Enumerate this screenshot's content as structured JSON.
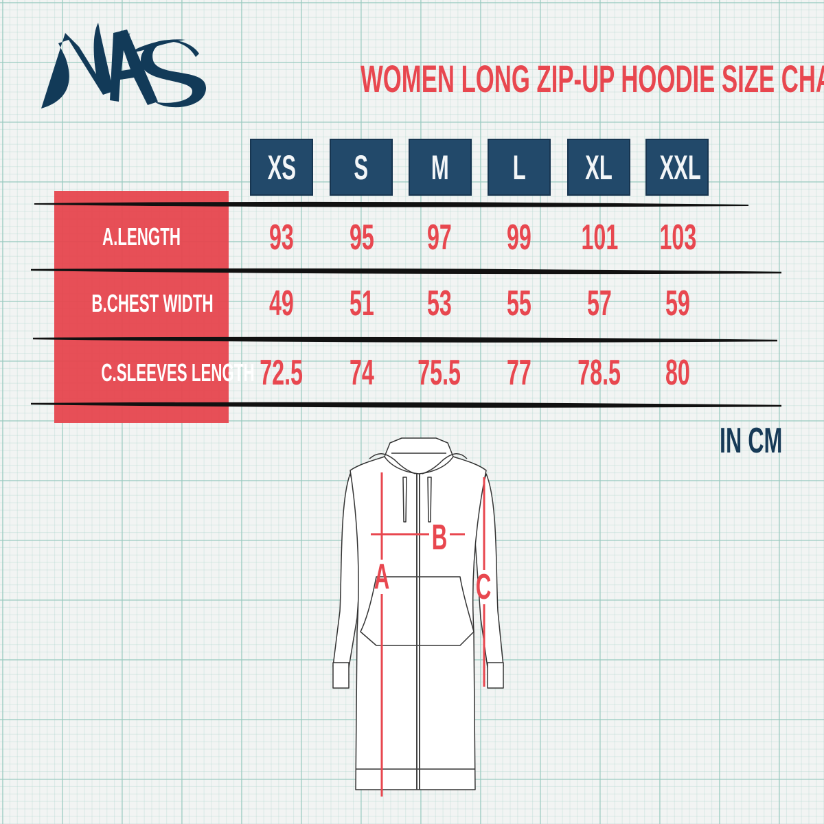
{
  "logo": {
    "text": "NAS",
    "color": "#123a58"
  },
  "title": "WOMEN LONG ZIP-UP HOODIE SIZE CHART",
  "colors": {
    "accent_red": "#e8474f",
    "navy": "#22496a",
    "grid": "#a8d4cc"
  },
  "sizes": [
    "XS",
    "S",
    "M",
    "L",
    "XL",
    "XXL"
  ],
  "rows": [
    {
      "label": "A.LENGTH",
      "values": [
        "93",
        "95",
        "97",
        "99",
        "101",
        "103"
      ]
    },
    {
      "label": "B.CHEST WIDTH",
      "values": [
        "49",
        "51",
        "53",
        "55",
        "57",
        "59"
      ]
    },
    {
      "label": "C.SLEEVES LENGTH",
      "values": [
        "72.5",
        "74",
        "75.5",
        "77",
        "78.5",
        "80"
      ]
    }
  ],
  "unit": "IN CM",
  "diagram": {
    "markers": [
      "A",
      "B",
      "C"
    ]
  }
}
